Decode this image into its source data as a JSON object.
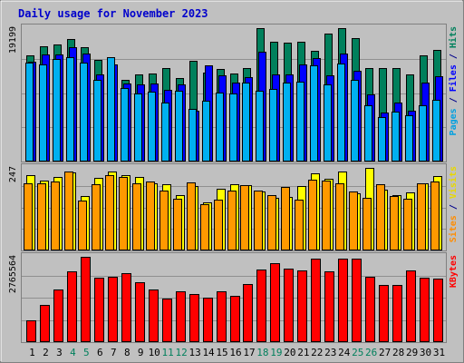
{
  "chart_data": {
    "type": "bar",
    "title": "Daily usage for November 2023",
    "categories": [
      "1",
      "2",
      "3",
      "4",
      "5",
      "6",
      "7",
      "8",
      "9",
      "10",
      "11",
      "12",
      "13",
      "14",
      "15",
      "16",
      "17",
      "18",
      "19",
      "20",
      "21",
      "22",
      "23",
      "24",
      "25",
      "26",
      "27",
      "28",
      "29",
      "30",
      "31"
    ],
    "weekend_days": [
      "4",
      "5",
      "11",
      "12",
      "18",
      "19",
      "25",
      "26"
    ],
    "panels": [
      {
        "id": "hits-panel",
        "ymax_label": "19199",
        "ymax": 19199,
        "legend": [
          {
            "text": "Pages",
            "color": "#00a0e0"
          },
          {
            "text": " / ",
            "color": "#00008b"
          },
          {
            "text": "Files",
            "color": "#0000ff"
          },
          {
            "text": " / ",
            "color": "#00008b"
          },
          {
            "text": "Hits",
            "color": "#00805c"
          }
        ],
        "series": [
          {
            "name": "Hits",
            "color": "#00805c",
            "values": [
              15300,
              16600,
              16900,
              17600,
              16400,
              14600,
              13100,
              11800,
              12600,
              12700,
              13400,
              12000,
              14500,
              12800,
              13300,
              12700,
              13500,
              19199,
              17200,
              17100,
              17200,
              15900,
              18400,
              19199,
              17800,
              13400,
              13400,
              13400,
              12500,
              15300,
              16000
            ]
          },
          {
            "name": "Files",
            "color": "#0000ff",
            "values": [
              14400,
              15400,
              15400,
              16400,
              15500,
              12500,
              14000,
              11200,
              11100,
              11200,
              10300,
              11100,
              7300,
              13800,
              12400,
              11300,
              12200,
              15800,
              12500,
              12500,
              14000,
              14900,
              12400,
              15600,
              13100,
              9600,
              7000,
              8500,
              7300,
              11400,
              12300
            ]
          },
          {
            "name": "Pages",
            "color": "#00b0f0",
            "values": [
              14200,
              14000,
              14800,
              15000,
              14300,
              11800,
              15000,
              10600,
              9800,
              10100,
              8500,
              10200,
              7600,
              8700,
              9900,
              9800,
              11300,
              10200,
              10400,
              11300,
              11500,
              13900,
              11100,
              14100,
              11700,
              8100,
              6400,
              7200,
              6600,
              8100,
              8900
            ]
          }
        ]
      },
      {
        "id": "sites-panel",
        "ymax_label": "247",
        "ymax": 247,
        "legend": [
          {
            "text": "Sites",
            "color": "#ff8c00"
          },
          {
            "text": " / ",
            "color": "#00008b"
          },
          {
            "text": "Visits",
            "color": "#e8d800"
          }
        ],
        "series": [
          {
            "name": "Visits",
            "color": "#ffff00",
            "values": [
              225,
              208,
              220,
              233,
              163,
              217,
              235,
              226,
              221,
              200,
              199,
              165,
              193,
              143,
              185,
              198,
              196,
              177,
              157,
              161,
              194,
              230,
              215,
              235,
              170,
              247,
              182,
              166,
              173,
              200,
              223
            ]
          },
          {
            "name": "Sites",
            "color": "#ff9900",
            "values": [
              200,
              200,
              205,
              237,
              148,
              198,
              225,
              220,
              200,
              205,
              180,
              154,
              203,
              139,
              151,
              180,
              195,
              178,
              165,
              189,
              152,
              211,
              210,
              202,
              177,
              158,
              197,
              162,
              155,
              200,
              205
            ]
          }
        ]
      },
      {
        "id": "kbytes-panel",
        "ymax_label": "2765564",
        "ymax": 2765564,
        "legend": [
          {
            "text": "KBytes",
            "color": "#ff0000"
          }
        ],
        "series": [
          {
            "name": "KBytes",
            "color": "#ff0000",
            "values": [
              700000,
              1200000,
              1700000,
              2300000,
              2765564,
              2100000,
              2120000,
              2250000,
              1950000,
              1700000,
              1400000,
              1650000,
              1550000,
              1430000,
              1640000,
              1500000,
              1880000,
              2340000,
              2570000,
              2370000,
              2330000,
              2700000,
              2290000,
              2720000,
              2700000,
              2110000,
              1850000,
              1850000,
              2320000,
              2080000,
              2050000
            ]
          }
        ]
      }
    ]
  }
}
